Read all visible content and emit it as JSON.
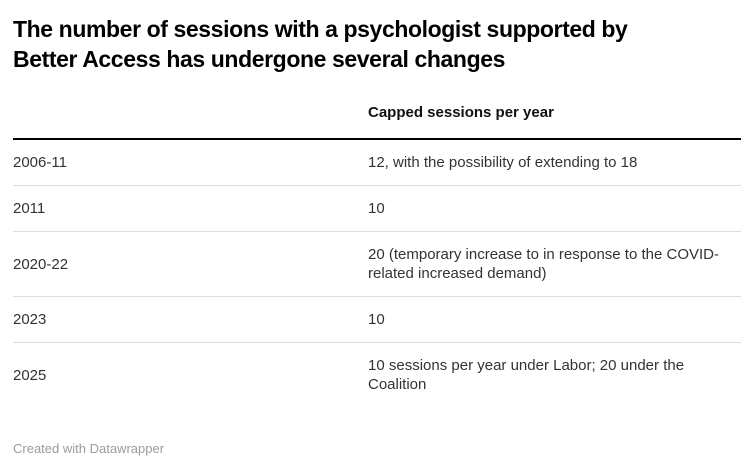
{
  "header": {
    "title": "The number of sessions with a psychologist supported by Better Access has undergone several changes",
    "title_line1": "The number of sessions with a psychologist supported by",
    "title_line2": "Better Access has undergone several changes"
  },
  "table": {
    "col1_header": "",
    "col2_header": "Capped sessions per year",
    "rows": [
      {
        "period": "2006-11",
        "value": "12, with the possibility of extending to 18"
      },
      {
        "period": "2011",
        "value": "10"
      },
      {
        "period": "2020-22",
        "value": "20 (temporary increase to in response to the COVID-related increased demand)"
      },
      {
        "period": "2023",
        "value": "10"
      },
      {
        "period": "2025",
        "value": "10 sessions per year under Labor; 20 under the Coalition"
      }
    ]
  },
  "footer": {
    "attribution": "Created with Datawrapper"
  },
  "colors": {
    "background": "#ffffff",
    "title_text": "#000000",
    "header_text": "#111111",
    "body_text": "#333333",
    "header_rule": "#000000",
    "row_divider": "#dddddd",
    "attribution_text": "#9b9b9b"
  },
  "chart_data": {
    "type": "table",
    "title": "The number of sessions with a psychologist supported by Better Access has undergone several changes",
    "columns": [
      "",
      "Capped sessions per year"
    ],
    "rows": [
      [
        "2006-11",
        "12, with the possibility of extending to 18"
      ],
      [
        "2011",
        "10"
      ],
      [
        "2020-22",
        "20 (temporary increase to in response to the COVID-related increased demand)"
      ],
      [
        "2023",
        "10"
      ],
      [
        "2025",
        "10 sessions per year under Labor; 20 under the Coalition"
      ]
    ],
    "attribution": "Created with Datawrapper"
  }
}
